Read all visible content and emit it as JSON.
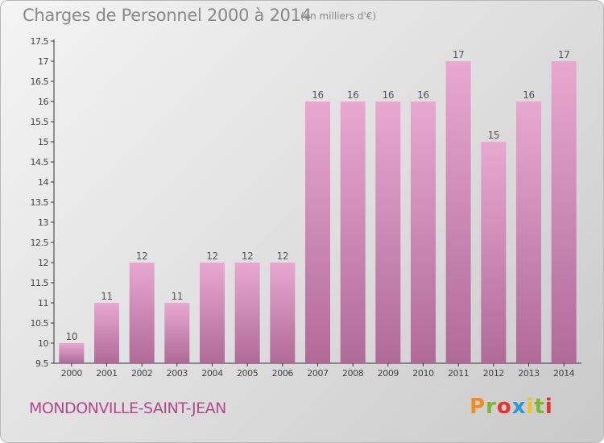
{
  "title": "Charges de Personnel 2000 à 2014",
  "unit": "(en milliers d'€)",
  "commune": "MONDONVILLE-SAINT-JEAN",
  "logo": {
    "text": "Proxiti",
    "colors": [
      "#f28c1f",
      "#7cb82f",
      "#e8322b",
      "#2e9bd6",
      "#f2c318",
      "#7cb82f",
      "#e8322b"
    ]
  },
  "colors": {
    "bar_top": "#e8a8d0",
    "bar_bottom": "#b06a98",
    "title": "#8a8a8a",
    "commune": "#b24a8a"
  },
  "chart_data": {
    "type": "bar",
    "title": "Charges de Personnel 2000 à 2014",
    "xlabel": "",
    "ylabel": "",
    "categories": [
      "2000",
      "2001",
      "2002",
      "2003",
      "2004",
      "2005",
      "2006",
      "2007",
      "2008",
      "2009",
      "2010",
      "2011",
      "2012",
      "2013",
      "2014"
    ],
    "values": [
      10,
      11,
      12,
      11,
      12,
      12,
      12,
      16,
      16,
      16,
      16,
      17,
      15,
      16,
      17
    ],
    "data_labels": [
      "10",
      "11",
      "12",
      "11",
      "12",
      "12",
      "12",
      "16",
      "16",
      "16",
      "16",
      "17",
      "15",
      "16",
      "17"
    ],
    "ylim": [
      9.5,
      17.5
    ],
    "yticks": [
      "9.5",
      "10",
      "10.5",
      "11",
      "11.5",
      "12",
      "12.5",
      "13",
      "13.5",
      "14",
      "14.5",
      "15",
      "15.5",
      "16",
      "16.5",
      "17",
      "17.5"
    ],
    "grid": false
  }
}
